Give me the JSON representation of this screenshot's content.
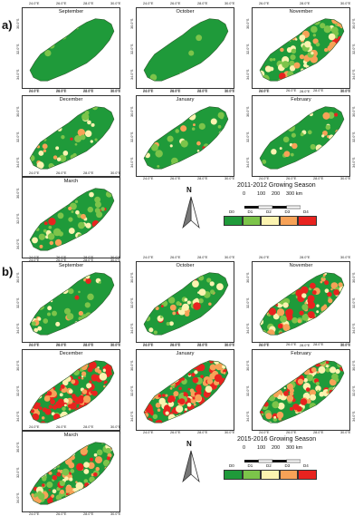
{
  "figure": {
    "sections": [
      {
        "label": "a)",
        "season_title": "2011-2012 Growing Season",
        "months": [
          {
            "name": "September",
            "drought": [
              0.96,
              0.03,
              0.01,
              0.0,
              0.0
            ]
          },
          {
            "name": "October",
            "drought": [
              0.97,
              0.02,
              0.01,
              0.0,
              0.0
            ]
          },
          {
            "name": "November",
            "drought": [
              0.55,
              0.2,
              0.15,
              0.08,
              0.02
            ]
          },
          {
            "name": "December",
            "drought": [
              0.75,
              0.12,
              0.08,
              0.04,
              0.01
            ]
          },
          {
            "name": "January",
            "drought": [
              0.8,
              0.1,
              0.06,
              0.03,
              0.01
            ]
          },
          {
            "name": "February",
            "drought": [
              0.82,
              0.1,
              0.05,
              0.02,
              0.01
            ]
          },
          {
            "name": "March",
            "drought": [
              0.7,
              0.15,
              0.08,
              0.05,
              0.02
            ]
          }
        ]
      },
      {
        "label": "b)",
        "season_title": "2015-2016 Growing Season",
        "months": [
          {
            "name": "September",
            "drought": [
              0.75,
              0.12,
              0.08,
              0.04,
              0.01
            ]
          },
          {
            "name": "October",
            "drought": [
              0.65,
              0.15,
              0.1,
              0.07,
              0.03
            ]
          },
          {
            "name": "November",
            "drought": [
              0.4,
              0.15,
              0.15,
              0.15,
              0.15
            ]
          },
          {
            "name": "December",
            "drought": [
              0.1,
              0.1,
              0.15,
              0.2,
              0.45
            ]
          },
          {
            "name": "January",
            "drought": [
              0.12,
              0.1,
              0.13,
              0.2,
              0.45
            ]
          },
          {
            "name": "February",
            "drought": [
              0.3,
              0.2,
              0.15,
              0.2,
              0.15
            ]
          },
          {
            "name": "March",
            "drought": [
              0.3,
              0.15,
              0.15,
              0.2,
              0.2
            ]
          }
        ]
      }
    ],
    "axis_ticks": {
      "lon_bottom": [
        "24.0°E",
        "26.0°E",
        "28.0°E",
        "30.0°E"
      ],
      "lon_top_alt": [
        "26.0°E",
        "28.0°E",
        "30.0°E"
      ],
      "lat": [
        "30.0°S",
        "32.0°S",
        "34.0°S"
      ]
    },
    "scale": {
      "labels": [
        "0",
        "100",
        "200",
        "300 km"
      ]
    },
    "north_label": "N",
    "legend": {
      "classes": [
        "D0",
        "D1",
        "D2",
        "D3",
        "D4"
      ],
      "colors": [
        "#1f9a3a",
        "#7cc44a",
        "#fbf3b0",
        "#f7a257",
        "#e8231f"
      ]
    }
  }
}
